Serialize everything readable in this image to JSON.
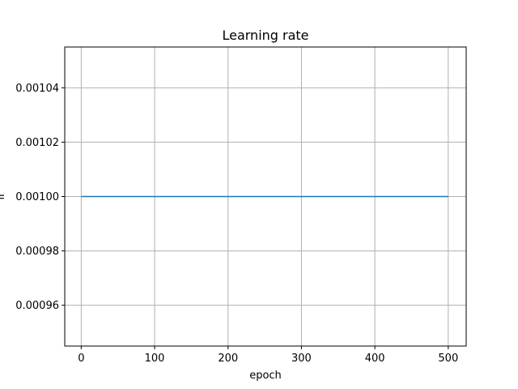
{
  "chart_data": {
    "type": "line",
    "title": "Learning rate",
    "xlabel": "epoch",
    "ylabel": "lr",
    "xlim": [
      -22.45,
      524.45
    ],
    "ylim": [
      0.000945,
      0.001055
    ],
    "x_ticks": [
      0,
      100,
      200,
      300,
      400,
      500
    ],
    "x_tick_labels": [
      "0",
      "100",
      "200",
      "300",
      "400",
      "500"
    ],
    "y_ticks": [
      0.00096,
      0.00098,
      0.001,
      0.00102,
      0.00104
    ],
    "y_tick_labels": [
      "0.00096",
      "0.00098",
      "0.00100",
      "0.00102",
      "0.00104"
    ],
    "grid": true,
    "series": [
      {
        "color": "#1f77b4",
        "x": [
          0,
          500
        ],
        "y": [
          0.001,
          0.001
        ]
      }
    ]
  }
}
